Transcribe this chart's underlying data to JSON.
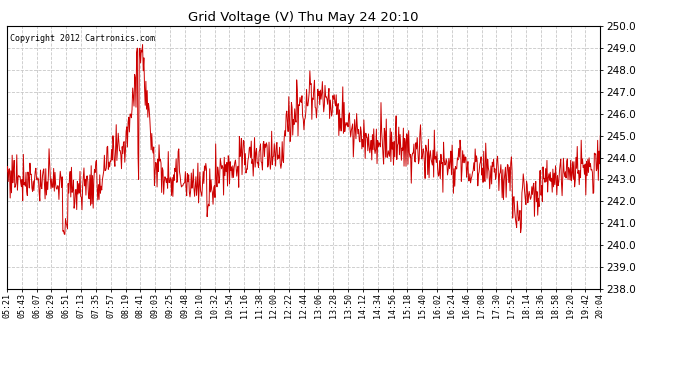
{
  "title": "Grid Voltage (V) Thu May 24 20:10",
  "copyright": "Copyright 2012 Cartronics.com",
  "line_color": "#cc0000",
  "bg_color": "#ffffff",
  "plot_bg_color": "#ffffff",
  "grid_color": "#c8c8c8",
  "ylabel": "",
  "ylim": [
    238.0,
    250.0
  ],
  "yticks": [
    238.0,
    239.0,
    240.0,
    241.0,
    242.0,
    243.0,
    244.0,
    245.0,
    246.0,
    247.0,
    248.0,
    249.0,
    250.0
  ],
  "xtick_labels": [
    "05:21",
    "05:43",
    "06:07",
    "06:29",
    "06:51",
    "07:13",
    "07:35",
    "07:57",
    "08:19",
    "08:41",
    "09:03",
    "09:25",
    "09:48",
    "10:10",
    "10:32",
    "10:54",
    "11:16",
    "11:38",
    "12:00",
    "12:22",
    "12:44",
    "13:06",
    "13:28",
    "13:50",
    "14:12",
    "14:34",
    "14:56",
    "15:18",
    "15:40",
    "16:02",
    "16:24",
    "16:46",
    "17:08",
    "17:30",
    "17:52",
    "18:14",
    "18:36",
    "18:58",
    "19:20",
    "19:42",
    "20:04"
  ],
  "seed": 77
}
